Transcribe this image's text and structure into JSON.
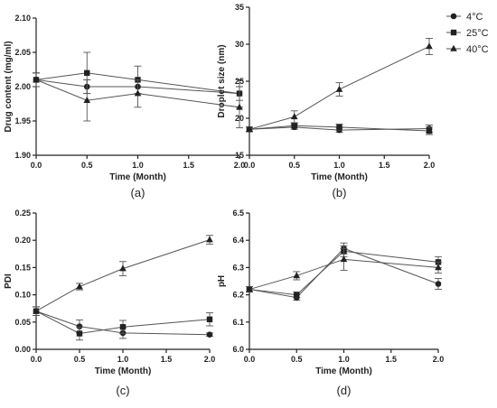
{
  "legend": [
    {
      "label": "4°C",
      "marker": "circle"
    },
    {
      "label": "25°C",
      "marker": "square"
    },
    {
      "label": "40°C",
      "marker": "triangle"
    }
  ],
  "colors": {
    "series": "#222222",
    "axis": "#222222",
    "line": "#555555"
  },
  "chart_data": [
    {
      "type": "line",
      "panel_label": "(a)",
      "xlabel": "Time (Month)",
      "ylabel": "Drug content (mg/ml)",
      "x": [
        0,
        0.5,
        1,
        2
      ],
      "xlim": [
        0,
        2
      ],
      "xticks": [
        0,
        0.5,
        1,
        1.5,
        2
      ],
      "ylim": [
        1.9,
        2.1
      ],
      "yticks": [
        1.9,
        1.95,
        2.0,
        2.05,
        2.1
      ],
      "xtick_labels": [
        "0.0",
        "0.5",
        "1.0",
        "1.5",
        "2.0"
      ],
      "ytick_labels": [
        "1.90",
        "1.95",
        "2.00",
        "2.05",
        "2.10"
      ],
      "series": [
        {
          "name": "4°C",
          "values": [
            2.01,
            2.0,
            2.0,
            1.99
          ],
          "errors": [
            0.01,
            0.01,
            0.01,
            0.01
          ]
        },
        {
          "name": "25°C",
          "values": [
            2.01,
            2.02,
            2.01,
            1.99
          ],
          "errors": [
            0.01,
            0.03,
            0.02,
            0.02
          ]
        },
        {
          "name": "40°C",
          "values": [
            2.01,
            1.98,
            1.99,
            1.97
          ],
          "errors": [
            0.01,
            0.03,
            0.02,
            0.03
          ]
        }
      ]
    },
    {
      "type": "line",
      "panel_label": "(b)",
      "xlabel": "Time (Month)",
      "ylabel": "Droplet size (nm)",
      "x": [
        0,
        0.5,
        1,
        2
      ],
      "xlim": [
        0,
        2
      ],
      "xticks": [
        0,
        0.5,
        1,
        1.5,
        2
      ],
      "ylim": [
        15,
        35
      ],
      "yticks": [
        15,
        20,
        25,
        30,
        35
      ],
      "xtick_labels": [
        "0.0",
        "0.5",
        "1.0",
        "1.5",
        "2.0"
      ],
      "ytick_labels": [
        "15",
        "20",
        "25",
        "30",
        "35"
      ],
      "series": [
        {
          "name": "4°C",
          "values": [
            18.5,
            18.8,
            18.4,
            18.6
          ],
          "errors": [
            0.3,
            0.3,
            0.3,
            0.5
          ]
        },
        {
          "name": "25°C",
          "values": [
            18.5,
            19.0,
            18.8,
            18.3
          ],
          "errors": [
            0.3,
            0.3,
            0.4,
            0.5
          ]
        },
        {
          "name": "40°C",
          "values": [
            18.5,
            20.2,
            23.9,
            29.7
          ],
          "errors": [
            0.3,
            0.8,
            0.9,
            1.1
          ]
        }
      ]
    },
    {
      "type": "line",
      "panel_label": "(c)",
      "xlabel": "Time (Month)",
      "ylabel": "PDI",
      "x": [
        0,
        0.5,
        1,
        2
      ],
      "xlim": [
        0,
        2
      ],
      "xticks": [
        0,
        0.5,
        1,
        1.5,
        2
      ],
      "ylim": [
        0,
        0.25
      ],
      "yticks": [
        0,
        0.05,
        0.1,
        0.15,
        0.2,
        0.25
      ],
      "xtick_labels": [
        "0.0",
        "0.5",
        "1.0",
        "1.5",
        "2.0"
      ],
      "ytick_labels": [
        "0.00",
        "0.05",
        "0.10",
        "0.15",
        "0.20",
        "0.25"
      ],
      "series": [
        {
          "name": "4°C",
          "values": [
            0.07,
            0.042,
            0.03,
            0.027
          ],
          "errors": [
            0.008,
            0.012,
            0.01,
            0.003
          ]
        },
        {
          "name": "25°C",
          "values": [
            0.07,
            0.029,
            0.041,
            0.055
          ],
          "errors": [
            0.008,
            0.012,
            0.012,
            0.012
          ]
        },
        {
          "name": "40°C",
          "values": [
            0.07,
            0.115,
            0.148,
            0.201
          ],
          "errors": [
            0.008,
            0.006,
            0.013,
            0.008
          ]
        }
      ]
    },
    {
      "type": "line",
      "panel_label": "(d)",
      "xlabel": "Time (Month)",
      "ylabel": "pH",
      "x": [
        0,
        0.5,
        1,
        2
      ],
      "xlim": [
        0,
        2
      ],
      "xticks": [
        0,
        0.5,
        1,
        1.5,
        2
      ],
      "ylim": [
        6.0,
        6.5
      ],
      "yticks": [
        6.0,
        6.1,
        6.2,
        6.3,
        6.4,
        6.5
      ],
      "xtick_labels": [
        "0.0",
        "0.5",
        "1.0",
        "1.5",
        "2.0"
      ],
      "ytick_labels": [
        "6.0",
        "6.1",
        "6.2",
        "6.3",
        "6.4",
        "6.5"
      ],
      "series": [
        {
          "name": "4°C",
          "values": [
            6.22,
            6.19,
            6.37,
            6.24
          ],
          "errors": [
            0.01,
            0.01,
            0.02,
            0.02
          ]
        },
        {
          "name": "25°C",
          "values": [
            6.22,
            6.2,
            6.36,
            6.32
          ],
          "errors": [
            0.01,
            0.01,
            0.02,
            0.02
          ]
        },
        {
          "name": "40°C",
          "values": [
            6.22,
            6.27,
            6.33,
            6.3
          ],
          "errors": [
            0.01,
            0.015,
            0.04,
            0.02
          ]
        }
      ]
    }
  ]
}
